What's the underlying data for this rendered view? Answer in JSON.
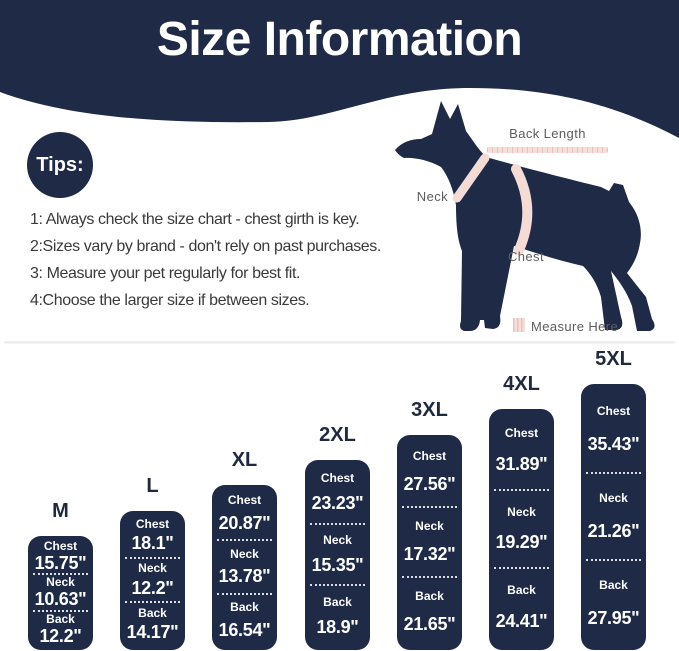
{
  "colors": {
    "navy": "#1e2a46",
    "pink": "#f5dbd6",
    "pink_tick": "#e9c2bd",
    "label_gray": "#5d5d5d",
    "text_dark": "#3a3a3a",
    "size_label": "#202a3e",
    "divider": "#ececec",
    "white": "#ffffff"
  },
  "header": {
    "title": "Size Information"
  },
  "tips": {
    "badge_label": "Tips:",
    "lines": [
      "1: Always check the size chart - chest girth is key.",
      "2:Sizes vary by brand - don't rely on past purchases.",
      "3: Measure your pet regularly for best fit.",
      "4:Choose the larger size if between sizes."
    ]
  },
  "diagram": {
    "back_length_label": "Back Length",
    "neck_label": "Neck",
    "chest_label": "Chest",
    "legend_label": "Measure Here",
    "icons": {
      "dog": "dog-silhouette-side-view",
      "legend_swatch": "pink-striped-square",
      "neck_band": "pink-neck-strap",
      "chest_band": "pink-chest-strap",
      "back_tape": "pink-measuring-tape"
    }
  },
  "size_chart": {
    "row_labels": {
      "chest": "Chest",
      "neck": "Neck",
      "back": "Back"
    },
    "sizes": [
      {
        "name": "M",
        "chest": "15.75\"",
        "neck": "10.63\"",
        "back": "12.2\""
      },
      {
        "name": "L",
        "chest": "18.1\"",
        "neck": "12.2\"",
        "back": "14.17\""
      },
      {
        "name": "XL",
        "chest": "20.87\"",
        "neck": "13.78\"",
        "back": "16.54\""
      },
      {
        "name": "2XL",
        "chest": "23.23\"",
        "neck": "15.35\"",
        "back": "18.9\""
      },
      {
        "name": "3XL",
        "chest": "27.56\"",
        "neck": "17.32\"",
        "back": "21.65\""
      },
      {
        "name": "4XL",
        "chest": "31.89\"",
        "neck": "19.29\"",
        "back": "24.41\""
      },
      {
        "name": "5XL",
        "chest": "35.43\"",
        "neck": "21.26\"",
        "back": "27.95\""
      }
    ]
  }
}
